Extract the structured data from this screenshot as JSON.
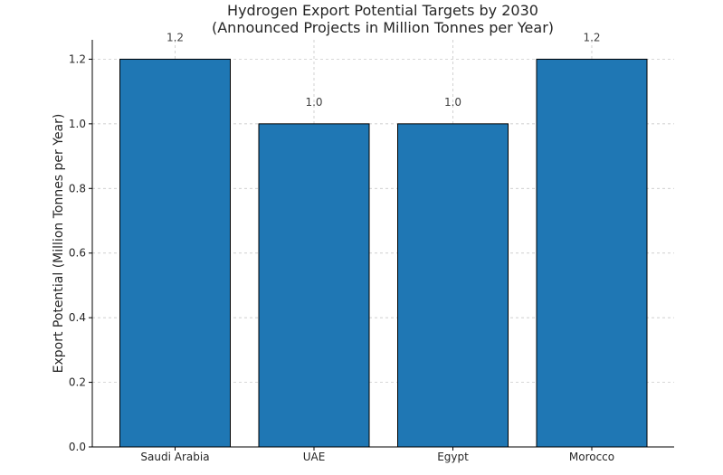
{
  "chart_data": {
    "type": "bar",
    "title": "Hydrogen Export Potential Targets by 2030",
    "subtitle": "(Announced Projects in Million Tonnes per Year)",
    "xlabel": "",
    "ylabel": "Export Potential (Million Tonnes per Year)",
    "categories": [
      "Saudi Arabia",
      "UAE",
      "Egypt",
      "Morocco"
    ],
    "values": [
      1.2,
      1.0,
      1.0,
      1.2
    ],
    "value_labels": [
      "1.2",
      "1.0",
      "1.0",
      "1.2"
    ],
    "ylim": [
      0,
      1.2
    ],
    "yticks": [
      0.0,
      0.2,
      0.4,
      0.6,
      0.8,
      1.0,
      1.2
    ],
    "ytick_labels": [
      "0.0",
      "0.2",
      "0.4",
      "0.6",
      "0.8",
      "1.0",
      "1.2"
    ],
    "grid": true,
    "bar_color": "#1f77b4",
    "edge_color": "#000000"
  }
}
